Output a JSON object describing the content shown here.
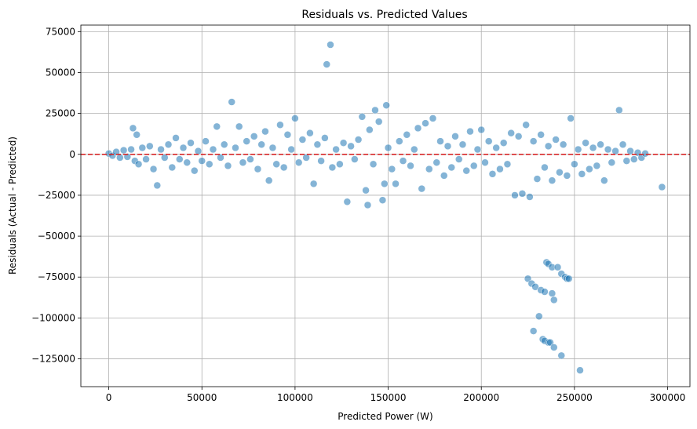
{
  "chart_data": {
    "type": "scatter",
    "title": "Residuals vs. Predicted Values",
    "xlabel": "Predicted Power (W)",
    "ylabel": "Residuals (Actual - Predicted)",
    "xlim": [
      -15000,
      312000
    ],
    "ylim": [
      -142000,
      79000
    ],
    "xticks": [
      0,
      50000,
      100000,
      150000,
      200000,
      250000,
      300000
    ],
    "xtick_labels": [
      "0",
      "50000",
      "100000",
      "150000",
      "200000",
      "250000",
      "300000"
    ],
    "yticks": [
      75000,
      50000,
      25000,
      0,
      -25000,
      -50000,
      -75000,
      -100000,
      -125000
    ],
    "ytick_labels": [
      "75000",
      "50000",
      "25000",
      "0",
      "−25000",
      "−50000",
      "−75000",
      "−100000",
      "−125000"
    ],
    "grid": true,
    "reference_line": {
      "y": 0,
      "color": "#d62728",
      "style": "dashed"
    },
    "point_color": "#1f77b4",
    "points": [
      [
        0,
        500
      ],
      [
        2000,
        -800
      ],
      [
        4000,
        1500
      ],
      [
        6000,
        -2000
      ],
      [
        8000,
        2500
      ],
      [
        10000,
        -1500
      ],
      [
        12000,
        3000
      ],
      [
        14000,
        -4000
      ],
      [
        13000,
        16000
      ],
      [
        15000,
        12000
      ],
      [
        16000,
        -6000
      ],
      [
        18000,
        4000
      ],
      [
        20000,
        -3000
      ],
      [
        22000,
        5000
      ],
      [
        24000,
        -9000
      ],
      [
        26000,
        -19000
      ],
      [
        28000,
        3000
      ],
      [
        30000,
        -2000
      ],
      [
        32000,
        6000
      ],
      [
        34000,
        -8000
      ],
      [
        36000,
        10000
      ],
      [
        38000,
        -3000
      ],
      [
        40000,
        4000
      ],
      [
        42000,
        -5000
      ],
      [
        44000,
        7000
      ],
      [
        46000,
        -10000
      ],
      [
        48000,
        2000
      ],
      [
        50000,
        -4000
      ],
      [
        52000,
        8000
      ],
      [
        54000,
        -6000
      ],
      [
        56000,
        3000
      ],
      [
        58000,
        17000
      ],
      [
        60000,
        -2000
      ],
      [
        62000,
        6000
      ],
      [
        64000,
        -7000
      ],
      [
        66000,
        32000
      ],
      [
        68000,
        4000
      ],
      [
        70000,
        17000
      ],
      [
        72000,
        -5000
      ],
      [
        74000,
        8000
      ],
      [
        76000,
        -3000
      ],
      [
        78000,
        11000
      ],
      [
        80000,
        -9000
      ],
      [
        82000,
        6000
      ],
      [
        84000,
        14000
      ],
      [
        86000,
        -16000
      ],
      [
        88000,
        4000
      ],
      [
        90000,
        -6000
      ],
      [
        92000,
        18000
      ],
      [
        94000,
        -8000
      ],
      [
        96000,
        12000
      ],
      [
        98000,
        3000
      ],
      [
        100000,
        22000
      ],
      [
        102000,
        -5000
      ],
      [
        104000,
        9000
      ],
      [
        106000,
        -2000
      ],
      [
        108000,
        13000
      ],
      [
        110000,
        -18000
      ],
      [
        112000,
        6000
      ],
      [
        114000,
        -4000
      ],
      [
        116000,
        10000
      ],
      [
        117000,
        55000
      ],
      [
        119000,
        67000
      ],
      [
        120000,
        -8000
      ],
      [
        122000,
        3000
      ],
      [
        124000,
        -6000
      ],
      [
        126000,
        7000
      ],
      [
        128000,
        -29000
      ],
      [
        130000,
        5000
      ],
      [
        132000,
        -3000
      ],
      [
        134000,
        9000
      ],
      [
        136000,
        23000
      ],
      [
        138000,
        -22000
      ],
      [
        139000,
        -31000
      ],
      [
        140000,
        15000
      ],
      [
        142000,
        -6000
      ],
      [
        143000,
        27000
      ],
      [
        145000,
        20000
      ],
      [
        147000,
        -28000
      ],
      [
        148000,
        -18000
      ],
      [
        149000,
        30000
      ],
      [
        150000,
        4000
      ],
      [
        152000,
        -9000
      ],
      [
        154000,
        -18000
      ],
      [
        156000,
        8000
      ],
      [
        158000,
        -4000
      ],
      [
        160000,
        12000
      ],
      [
        162000,
        -7000
      ],
      [
        164000,
        3000
      ],
      [
        166000,
        16000
      ],
      [
        168000,
        -21000
      ],
      [
        170000,
        19000
      ],
      [
        172000,
        -9000
      ],
      [
        174000,
        22000
      ],
      [
        176000,
        -5000
      ],
      [
        178000,
        8000
      ],
      [
        180000,
        -13000
      ],
      [
        182000,
        5000
      ],
      [
        184000,
        -8000
      ],
      [
        186000,
        11000
      ],
      [
        188000,
        -3000
      ],
      [
        190000,
        6000
      ],
      [
        192000,
        -10000
      ],
      [
        194000,
        14000
      ],
      [
        196000,
        -7000
      ],
      [
        198000,
        3000
      ],
      [
        200000,
        15000
      ],
      [
        202000,
        -5000
      ],
      [
        204000,
        8000
      ],
      [
        206000,
        -12000
      ],
      [
        208000,
        4000
      ],
      [
        210000,
        -9000
      ],
      [
        212000,
        7000
      ],
      [
        214000,
        -6000
      ],
      [
        216000,
        13000
      ],
      [
        218000,
        -25000
      ],
      [
        220000,
        11000
      ],
      [
        222000,
        -24000
      ],
      [
        224000,
        18000
      ],
      [
        226000,
        -26000
      ],
      [
        228000,
        8000
      ],
      [
        230000,
        -15000
      ],
      [
        232000,
        12000
      ],
      [
        234000,
        -8000
      ],
      [
        236000,
        5000
      ],
      [
        238000,
        -16000
      ],
      [
        240000,
        9000
      ],
      [
        242000,
        -11000
      ],
      [
        244000,
        6000
      ],
      [
        246000,
        -13000
      ],
      [
        248000,
        22000
      ],
      [
        250000,
        -6000
      ],
      [
        252000,
        3000
      ],
      [
        254000,
        -12000
      ],
      [
        256000,
        7000
      ],
      [
        258000,
        -9000
      ],
      [
        260000,
        4000
      ],
      [
        262000,
        -7000
      ],
      [
        264000,
        6000
      ],
      [
        266000,
        -16000
      ],
      [
        268000,
        3000
      ],
      [
        270000,
        -5000
      ],
      [
        272000,
        2000
      ],
      [
        274000,
        27000
      ],
      [
        276000,
        6000
      ],
      [
        278000,
        -4000
      ],
      [
        280000,
        2000
      ],
      [
        282000,
        -3000
      ],
      [
        284000,
        1000
      ],
      [
        286000,
        -2000
      ],
      [
        288000,
        500
      ],
      [
        297000,
        -20000
      ],
      [
        225000,
        -76000
      ],
      [
        227000,
        -79000
      ],
      [
        229000,
        -81000
      ],
      [
        231000,
        -99000
      ],
      [
        232000,
        -83000
      ],
      [
        234000,
        -84000
      ],
      [
        235000,
        -66000
      ],
      [
        236000,
        -67000
      ],
      [
        238000,
        -69000
      ],
      [
        238000,
        -85000
      ],
      [
        239000,
        -89000
      ],
      [
        241000,
        -69000
      ],
      [
        243000,
        -73000
      ],
      [
        245000,
        -75000
      ],
      [
        246000,
        -76000
      ],
      [
        247000,
        -76000
      ],
      [
        228000,
        -108000
      ],
      [
        233000,
        -113000
      ],
      [
        234000,
        -114000
      ],
      [
        236000,
        -115000
      ],
      [
        237000,
        -115000
      ],
      [
        239000,
        -118000
      ],
      [
        243000,
        -123000
      ],
      [
        253000,
        -132000
      ]
    ]
  }
}
